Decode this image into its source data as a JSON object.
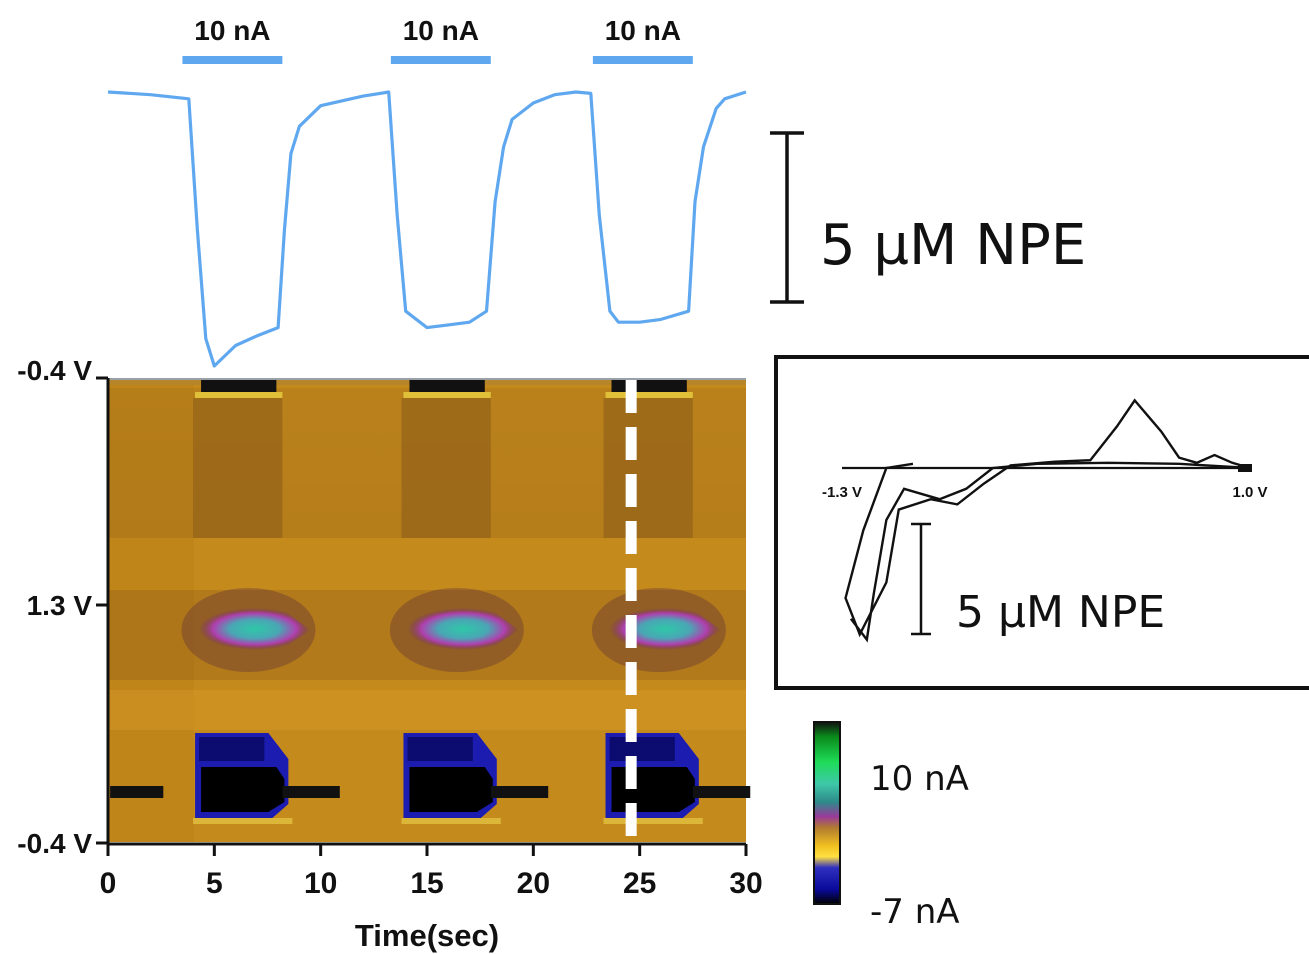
{
  "colors": {
    "trace": "#5fa8f0",
    "stim_bar": "#5fa8f0",
    "axis": "#111111",
    "background_field": "#c58a1c",
    "marker": "#ffffff"
  },
  "stimulations": [
    {
      "label": "10 nA",
      "start": 3.5,
      "end": 8.2
    },
    {
      "label": "10 nA",
      "start": 13.3,
      "end": 18.0
    },
    {
      "label": "10 nA",
      "start": 22.8,
      "end": 27.5
    }
  ],
  "scale_bar_main": {
    "label": "5 µM NPE"
  },
  "scale_bar_inset": {
    "label": "5 µM NPE"
  },
  "colorbar": {
    "max_label": "10 nA",
    "min_label": "-7 nA"
  },
  "inset": {
    "left_label": "-1.3 V",
    "right_label": "1.0 V"
  },
  "chart_data": [
    {
      "type": "line",
      "title": "",
      "xlabel": "",
      "ylabel": "",
      "x": [
        0,
        2,
        3.8,
        4.2,
        4.6,
        5,
        6,
        7,
        8,
        8.3,
        8.6,
        9,
        10,
        12,
        13.2,
        13.6,
        14,
        15,
        16,
        17,
        17.8,
        18.2,
        18.6,
        19,
        20,
        21,
        22,
        22.7,
        23.1,
        23.6,
        24,
        25,
        26,
        27.3,
        27.6,
        28,
        28.6,
        29,
        30
      ],
      "y": [
        0.0,
        -0.02,
        -0.05,
        -1.0,
        -1.8,
        -2.0,
        -1.85,
        -1.78,
        -1.72,
        -1.0,
        -0.45,
        -0.25,
        -0.1,
        -0.03,
        0.0,
        -0.9,
        -1.6,
        -1.72,
        -1.7,
        -1.68,
        -1.6,
        -0.8,
        -0.4,
        -0.2,
        -0.08,
        -0.02,
        0.0,
        -0.01,
        -0.9,
        -1.6,
        -1.68,
        -1.68,
        -1.66,
        -1.6,
        -0.8,
        -0.4,
        -0.12,
        -0.05,
        0.0
      ],
      "xlim": [
        0,
        30
      ]
    },
    {
      "type": "heatmap",
      "title": "",
      "xlabel": "Time(sec)",
      "ylabel": "",
      "xlim": [
        0,
        30
      ],
      "x_ticks": [
        "0",
        "5",
        "10",
        "15",
        "20",
        "25",
        "30"
      ],
      "y_ticks": [
        "-0.4 V",
        "1.3 V",
        "-0.4 V"
      ],
      "marker_time": 24.6,
      "color_range": [
        -7,
        10
      ]
    },
    {
      "type": "line",
      "title": "",
      "xlabel": "",
      "ylabel": "",
      "x": [
        -1.3,
        -1.2,
        -1.0,
        -0.8,
        -0.6,
        -0.4,
        -0.2,
        0.0,
        0.2,
        0.4,
        0.6,
        0.8,
        1.0
      ],
      "y_forward": [
        -0.02,
        -1.8,
        -2.9,
        -1.5,
        -0.5,
        -0.2,
        0.1,
        0.3,
        0.6,
        1.4,
        0.4,
        0.2,
        0.0
      ],
      "y_reverse": [
        -0.02,
        0.0,
        0.1,
        0.1,
        0.15,
        0.1,
        0.1,
        0.1,
        0.1,
        0.1,
        0.1,
        0.05,
        0.0
      ],
      "xlim": [
        -1.3,
        1.0
      ]
    }
  ]
}
